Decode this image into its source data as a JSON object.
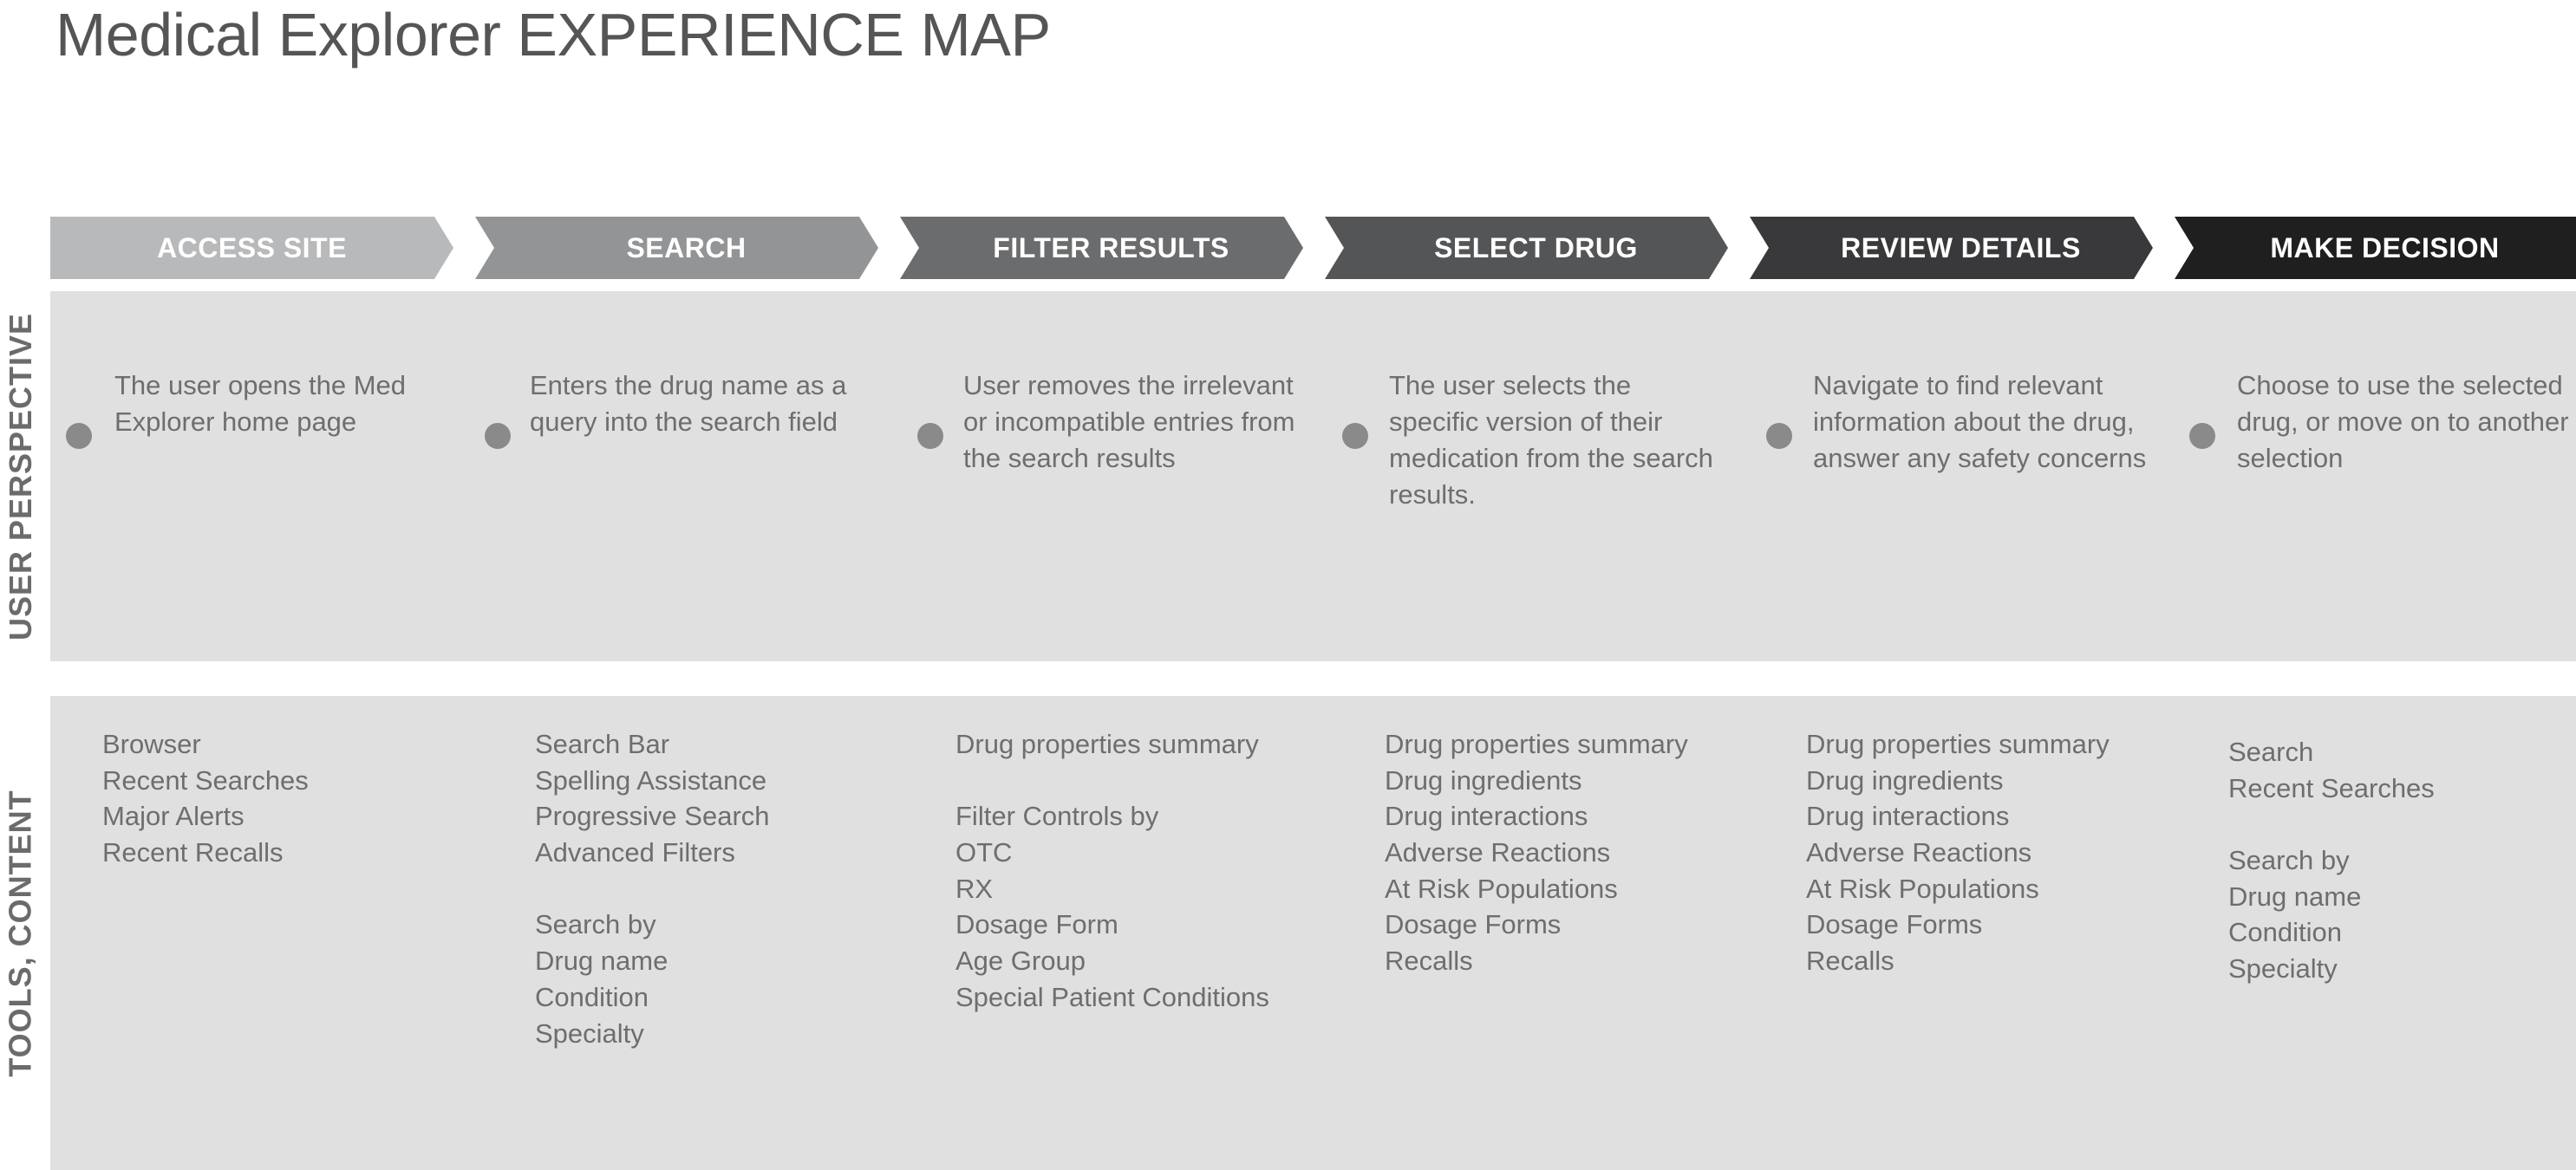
{
  "title": "Medical Explorer EXPERIENCE MAP",
  "row_labels": {
    "user": "USER PERSPECTIVE",
    "tools": "TOOLS, CONTENT"
  },
  "colors": {
    "band": "#dfe0df",
    "bullet": "#8a8a8a",
    "text": "#6e6e6e",
    "phases": [
      "#b8b9bb",
      "#939496",
      "#6b6c6e",
      "#545557",
      "#39393b",
      "#1f1f20"
    ]
  },
  "phases": [
    {
      "label": "ACCESS SITE",
      "perspective": "The user opens the Med Explorer home page",
      "tools": [
        "Browser",
        "Recent Searches",
        "Major Alerts",
        "Recent Recalls"
      ]
    },
    {
      "label": "SEARCH",
      "perspective": "Enters the drug name as a query into the search field",
      "tools": [
        "Search Bar",
        "Spelling Assistance",
        "Progressive Search",
        "Advanced Filters",
        "",
        "Search by",
        "Drug name",
        "Condition",
        "Specialty"
      ]
    },
    {
      "label": "FILTER RESULTS",
      "perspective": "User removes the irrelevant or incompatible entries from the search results",
      "tools": [
        "Drug properties summary",
        "",
        "Filter Controls by",
        "OTC",
        "RX",
        "Dosage Form",
        "Age Group",
        "Special Patient Conditions"
      ]
    },
    {
      "label": "SELECT DRUG",
      "perspective": "The user selects the specific version of their medication from the search results.",
      "tools": [
        "Drug properties summary",
        "Drug ingredients",
        "Drug interactions",
        "Adverse Reactions",
        "At Risk Populations",
        "Dosage Forms",
        "Recalls"
      ]
    },
    {
      "label": "REVIEW DETAILS",
      "perspective": "Navigate to find relevant information about the drug, answer any safety concerns",
      "tools": [
        "Drug properties summary",
        "Drug ingredients",
        "Drug interactions",
        "Adverse Reactions",
        "At Risk Populations",
        "Dosage Forms",
        "Recalls"
      ]
    },
    {
      "label": "MAKE DECISION",
      "perspective": "Choose to use the selected drug, or move on to another selection",
      "tools": [
        "Search",
        "Recent Searches",
        "",
        "Search by",
        "Drug name",
        "Condition",
        "Specialty"
      ]
    }
  ]
}
